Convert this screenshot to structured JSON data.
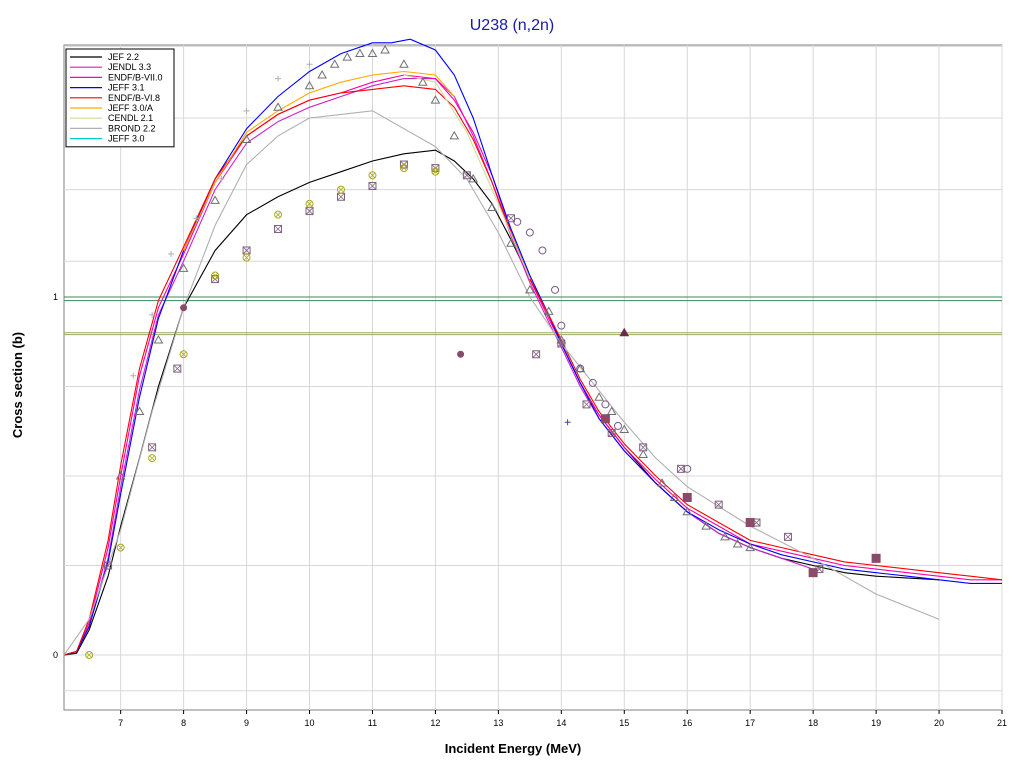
{
  "chart_data": {
    "type": "line",
    "title": "U238 (n,2n)",
    "xlabel": "Incident Energy (MeV)",
    "ylabel": "Cross section (b)",
    "xlim": [
      6.1,
      21
    ],
    "y_tick_labels": [
      {
        "value": 1,
        "label": "1"
      },
      {
        "value": 0,
        "label": "0"
      }
    ],
    "x_ticks": [
      7,
      8,
      9,
      10,
      11,
      12,
      13,
      14,
      15,
      16,
      17,
      18,
      19,
      20,
      21
    ],
    "grid": true,
    "legend_position": "top-left",
    "horizontal_lines": [
      {
        "y": 1.0,
        "color": "#3a8a5a"
      },
      {
        "y": 0.99,
        "color": "#3a8a5a"
      },
      {
        "y": 0.9,
        "color": "#9aaa60"
      },
      {
        "y": 0.895,
        "color": "#9aaa60"
      }
    ],
    "series": [
      {
        "name": "JEF 2.2",
        "color": "#000000",
        "x": [
          6.1,
          6.3,
          6.5,
          6.8,
          7,
          7.3,
          7.6,
          8,
          8.5,
          9,
          9.5,
          10,
          10.5,
          11,
          11.5,
          12,
          12.3,
          12.6,
          12.9,
          13.2,
          13.5,
          13.8,
          14,
          14.3,
          14.6,
          15,
          15.5,
          16,
          16.5,
          17,
          17.5,
          18,
          18.5,
          19,
          20
        ],
        "y": [
          0,
          0.005,
          0.07,
          0.22,
          0.36,
          0.55,
          0.75,
          0.97,
          1.13,
          1.23,
          1.28,
          1.32,
          1.35,
          1.38,
          1.4,
          1.41,
          1.38,
          1.33,
          1.26,
          1.16,
          1.05,
          0.95,
          0.87,
          0.76,
          0.67,
          0.58,
          0.48,
          0.4,
          0.34,
          0.3,
          0.27,
          0.25,
          0.23,
          0.22,
          0.21
        ]
      },
      {
        "name": "JENDL 3.3",
        "color": "#cc22cc",
        "x": [
          6.1,
          6.3,
          6.5,
          6.8,
          7,
          7.3,
          7.6,
          8,
          8.5,
          9,
          9.5,
          10,
          10.5,
          11,
          11.5,
          12,
          12.3,
          12.6,
          12.9,
          13.2,
          13.5,
          13.8,
          14,
          14.3,
          14.6,
          15,
          15.5,
          16,
          16.5,
          17,
          17.5,
          18
        ],
        "y": [
          0,
          0.01,
          0.08,
          0.27,
          0.47,
          0.74,
          0.95,
          1.1,
          1.3,
          1.43,
          1.49,
          1.53,
          1.56,
          1.59,
          1.61,
          1.61,
          1.56,
          1.45,
          1.32,
          1.17,
          1.04,
          0.93,
          0.86,
          0.75,
          0.66,
          0.57,
          0.48,
          0.4,
          0.34,
          0.3,
          0.27,
          0.24
        ]
      },
      {
        "name": "ENDF/B-VII.0",
        "color": "#ff00aa",
        "x": [
          6.1,
          6.3,
          6.5,
          6.8,
          7,
          7.3,
          7.6,
          8,
          8.5,
          9,
          9.5,
          10,
          10.5,
          11,
          11.5,
          12,
          12.3,
          12.6,
          12.9,
          13.2,
          13.5,
          13.8,
          14,
          14.3,
          14.6,
          15,
          15.5,
          16,
          16.5,
          17,
          17.5,
          18,
          18.5,
          19,
          19.5,
          20,
          20.5,
          21
        ],
        "y": [
          0,
          0.01,
          0.09,
          0.3,
          0.5,
          0.78,
          0.97,
          1.12,
          1.32,
          1.45,
          1.51,
          1.55,
          1.57,
          1.6,
          1.62,
          1.61,
          1.55,
          1.46,
          1.34,
          1.18,
          1.05,
          0.94,
          0.87,
          0.76,
          0.67,
          0.58,
          0.49,
          0.41,
          0.36,
          0.31,
          0.29,
          0.27,
          0.25,
          0.24,
          0.23,
          0.22,
          0.21,
          0.21
        ]
      },
      {
        "name": "JEFF 3.1",
        "color": "#0000ff",
        "x": [
          6.1,
          6.3,
          6.5,
          6.8,
          7,
          7.3,
          7.6,
          8,
          8.5,
          9,
          9.5,
          10,
          10.5,
          11,
          11.3,
          11.6,
          12,
          12.3,
          12.6,
          12.9,
          13.2,
          13.5,
          13.8,
          14,
          14.3,
          14.6,
          15,
          15.5,
          16,
          16.5,
          17,
          17.5,
          18,
          18.5,
          19,
          19.5,
          20,
          20.5,
          21
        ],
        "y": [
          0,
          0.01,
          0.08,
          0.26,
          0.45,
          0.72,
          0.94,
          1.13,
          1.33,
          1.47,
          1.56,
          1.63,
          1.68,
          1.71,
          1.71,
          1.72,
          1.69,
          1.62,
          1.5,
          1.34,
          1.19,
          1.06,
          0.95,
          0.87,
          0.76,
          0.66,
          0.57,
          0.48,
          0.4,
          0.35,
          0.31,
          0.28,
          0.26,
          0.24,
          0.23,
          0.22,
          0.21,
          0.2,
          0.2
        ]
      },
      {
        "name": "ENDF/B-VI.8",
        "color": "#ff0000",
        "x": [
          6.1,
          6.3,
          6.5,
          6.8,
          7,
          7.3,
          7.6,
          8,
          8.5,
          9,
          9.5,
          10,
          10.5,
          11,
          11.5,
          12,
          12.3,
          12.6,
          12.9,
          13.2,
          13.5,
          13.8,
          14,
          14.3,
          14.6,
          15,
          15.5,
          16,
          16.5,
          17,
          17.5,
          18,
          18.5,
          19,
          19.5,
          20,
          20.5,
          21
        ],
        "y": [
          0,
          0.01,
          0.1,
          0.32,
          0.53,
          0.8,
          0.99,
          1.14,
          1.33,
          1.45,
          1.51,
          1.55,
          1.57,
          1.58,
          1.59,
          1.58,
          1.53,
          1.44,
          1.32,
          1.18,
          1.05,
          0.95,
          0.88,
          0.77,
          0.68,
          0.59,
          0.5,
          0.42,
          0.37,
          0.32,
          0.3,
          0.28,
          0.26,
          0.25,
          0.24,
          0.23,
          0.22,
          0.21
        ]
      },
      {
        "name": "JEFF 3.0/A",
        "color": "#ffaa00",
        "x": [
          8,
          8.5,
          9,
          9.5,
          10,
          10.5,
          11,
          11.5,
          12,
          12.3
        ],
        "y": [
          1.13,
          1.32,
          1.46,
          1.52,
          1.57,
          1.6,
          1.62,
          1.63,
          1.62,
          1.56
        ]
      },
      {
        "name": "CENDL 2.1",
        "color": "#ccdd99",
        "x": [
          11.5,
          12,
          12.5,
          13,
          13.5
        ],
        "y": [
          1.62,
          1.6,
          1.46,
          1.26,
          1.05
        ]
      },
      {
        "name": "BROND 2.2",
        "color": "#b0b0b0",
        "x": [
          6.1,
          6.5,
          7,
          7.5,
          8,
          8.5,
          9,
          9.5,
          10,
          10.5,
          11,
          11.5,
          12,
          12.5,
          13,
          13.5,
          14,
          14.5,
          15,
          15.5,
          16,
          17,
          18,
          19,
          20
        ],
        "y": [
          0,
          0.1,
          0.35,
          0.68,
          0.97,
          1.2,
          1.37,
          1.45,
          1.5,
          1.51,
          1.52,
          1.47,
          1.42,
          1.33,
          1.18,
          1.0,
          0.87,
          0.76,
          0.65,
          0.55,
          0.47,
          0.36,
          0.27,
          0.17,
          0.1
        ]
      },
      {
        "name": "JEFF 3.0",
        "color": "#00cccc",
        "x": [],
        "y": []
      }
    ],
    "markers": [
      {
        "symbol": "triangle",
        "color": "#707070",
        "x": [
          7,
          7.3,
          7.6,
          8,
          8.5,
          9,
          9.5,
          10,
          10.2,
          10.4,
          10.6,
          10.8,
          11,
          11.2,
          11.5,
          11.8,
          12,
          12.3,
          12.6,
          12.9,
          13.2,
          13.5,
          13.8,
          14,
          14.3,
          14.6,
          14.8,
          15,
          15.3,
          15.6,
          15.8,
          16,
          16.3,
          16.6,
          16.8,
          17
        ],
        "y": [
          0.5,
          0.68,
          0.88,
          1.08,
          1.27,
          1.44,
          1.53,
          1.59,
          1.62,
          1.65,
          1.67,
          1.68,
          1.68,
          1.69,
          1.65,
          1.6,
          1.55,
          1.45,
          1.33,
          1.25,
          1.15,
          1.02,
          0.96,
          0.88,
          0.8,
          0.72,
          0.68,
          0.63,
          0.56,
          0.48,
          0.44,
          0.4,
          0.36,
          0.33,
          0.31,
          0.3
        ]
      },
      {
        "symbol": "boxed-x",
        "color": "#806080",
        "x": [
          6.8,
          7.5,
          7.9,
          8.5,
          9,
          9.5,
          10,
          10.5,
          11,
          11.5,
          12,
          12.5,
          13.2,
          13.6,
          14,
          14.4,
          14.8,
          15.3,
          15.9,
          16.5,
          17.1,
          17.6,
          18.1
        ],
        "y": [
          0.25,
          0.58,
          0.8,
          1.05,
          1.13,
          1.19,
          1.24,
          1.28,
          1.31,
          1.37,
          1.36,
          1.34,
          1.22,
          0.84,
          0.87,
          0.7,
          0.62,
          0.58,
          0.52,
          0.42,
          0.37,
          0.33,
          0.24
        ]
      },
      {
        "symbol": "circle-x",
        "color": "#aaaa22",
        "x": [
          6.5,
          7,
          7.5,
          8,
          8.5,
          9,
          9.5,
          10,
          10.5,
          11,
          11.5,
          12
        ],
        "y": [
          0,
          0.3,
          0.55,
          0.84,
          1.06,
          1.11,
          1.23,
          1.26,
          1.3,
          1.34,
          1.36,
          1.35
        ]
      },
      {
        "symbol": "circle",
        "color": "#7a5a8a",
        "x": [
          13.3,
          13.5,
          13.7,
          13.9,
          14,
          14.3,
          14.5,
          14.7,
          14.9,
          16
        ],
        "y": [
          1.21,
          1.18,
          1.13,
          1.02,
          0.92,
          0.8,
          0.76,
          0.7,
          0.64,
          0.52
        ]
      },
      {
        "symbol": "square",
        "color": "#8a4a6a",
        "x": [
          14.7,
          16,
          17,
          18,
          19
        ],
        "y": [
          0.66,
          0.44,
          0.37,
          0.23,
          0.27
        ]
      },
      {
        "symbol": "plus",
        "color": "#b0b0b0",
        "x": [
          7.2,
          7.5,
          7.8,
          8.2,
          8.6,
          9,
          9.5,
          10
        ],
        "y": [
          0.78,
          0.95,
          1.12,
          1.22,
          1.33,
          1.52,
          1.61,
          1.65
        ]
      },
      {
        "symbol": "filled-circle",
        "color": "#8a4a6a",
        "x": [
          12.4,
          8
        ],
        "y": [
          0.84,
          0.97
        ]
      },
      {
        "symbol": "filled-triangle",
        "color": "#6a2a4a",
        "x": [
          15
        ],
        "y": [
          0.9
        ]
      },
      {
        "symbol": "plus",
        "color": "#4040aa",
        "x": [
          14.1
        ],
        "y": [
          0.65
        ]
      }
    ]
  }
}
